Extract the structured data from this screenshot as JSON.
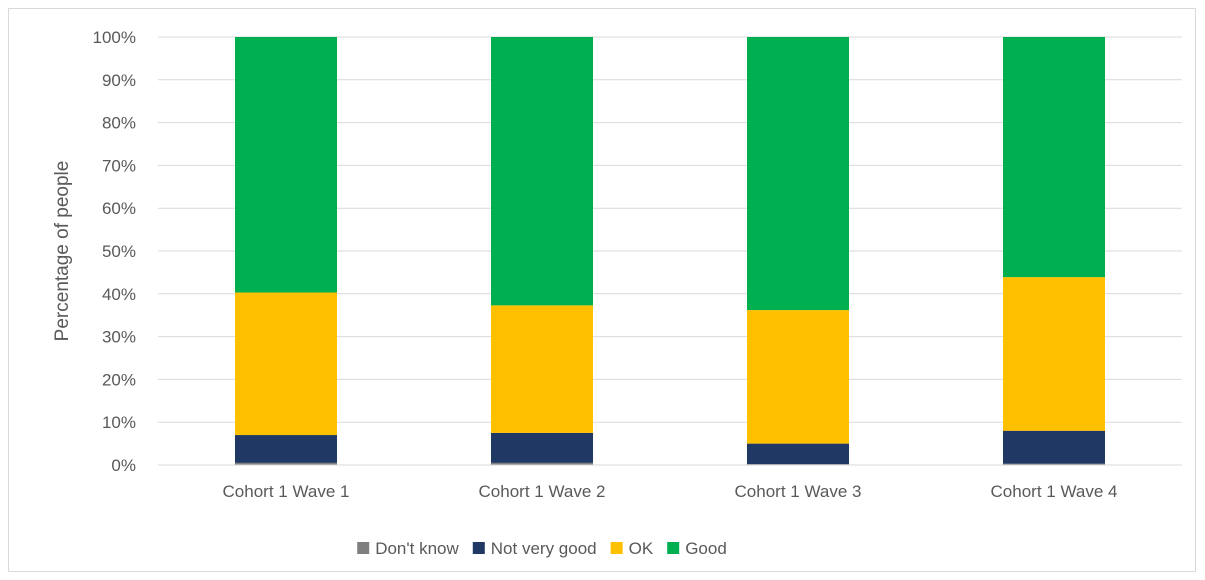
{
  "chart_data": {
    "type": "bar",
    "stacked": true,
    "percent": true,
    "title": "",
    "xlabel": "",
    "ylabel": "Percentage of people",
    "ylim": [
      0,
      100
    ],
    "yticks": [
      "0%",
      "10%",
      "20%",
      "30%",
      "40%",
      "50%",
      "60%",
      "70%",
      "80%",
      "90%",
      "100%"
    ],
    "categories": [
      "Cohort 1 Wave 1",
      "Cohort 1 Wave 2",
      "Cohort 1 Wave 3",
      "Cohort 1 Wave 4"
    ],
    "series": [
      {
        "name": "Don't know",
        "color": "#7f7f7f",
        "values": [
          0.5,
          0.5,
          0.2,
          0.3
        ]
      },
      {
        "name": "Not very good",
        "color": "#1f3864",
        "values": [
          6.5,
          7.0,
          4.8,
          7.7
        ]
      },
      {
        "name": "OK",
        "color": "#ffc000",
        "values": [
          33.3,
          29.8,
          31.2,
          35.9
        ]
      },
      {
        "name": "Good",
        "color": "#00b050",
        "values": [
          59.7,
          62.7,
          63.8,
          56.1
        ]
      }
    ],
    "grid": true,
    "legend_position": "bottom"
  }
}
